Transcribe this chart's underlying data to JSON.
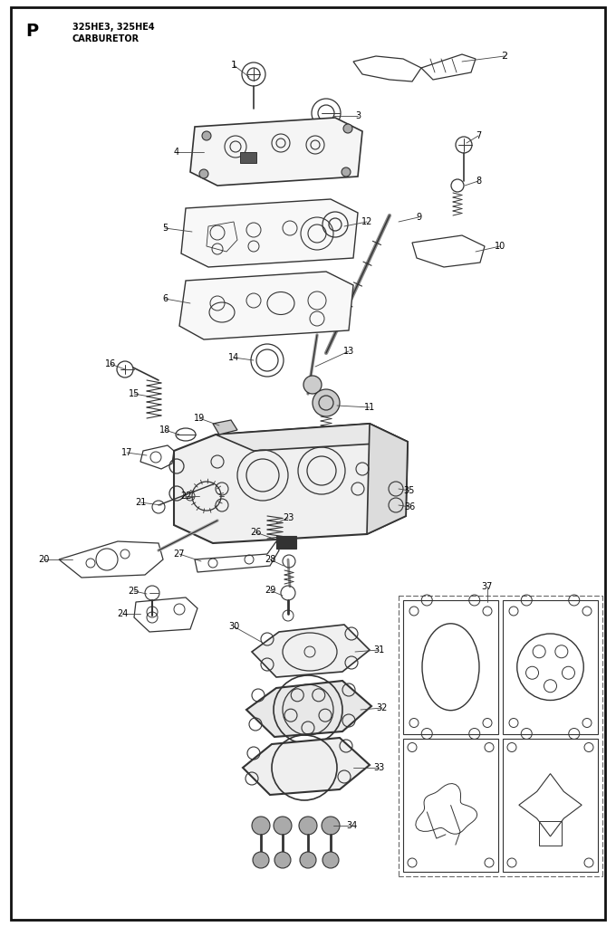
{
  "title_letter": "P",
  "title_line1": "325HE3, 325HE4",
  "title_line2": "CARBURETOR",
  "bg_color": "#ffffff",
  "line_color": "#333333"
}
